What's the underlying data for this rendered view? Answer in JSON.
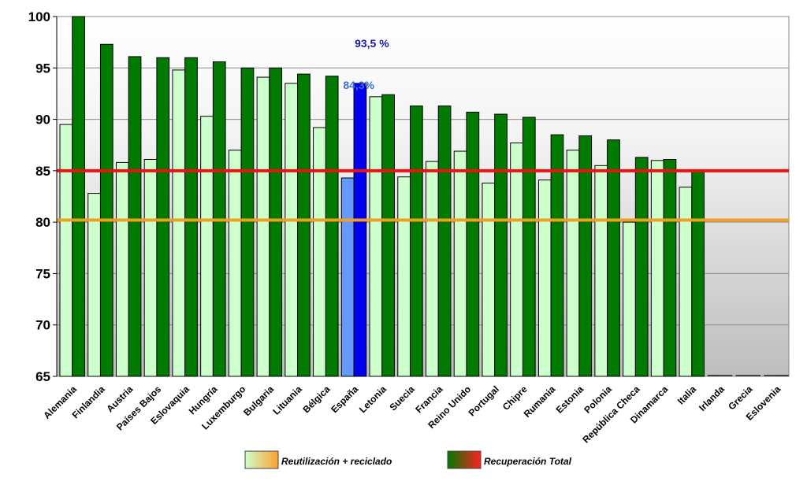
{
  "chart_data": {
    "type": "bar",
    "ylim": [
      65,
      100
    ],
    "yticks": [
      65,
      70,
      75,
      80,
      85,
      90,
      95,
      100
    ],
    "grid": true,
    "categories": [
      "Alemania",
      "Finlandia",
      "Austria",
      "Países Bajos",
      "Eslovaquia",
      "Hungría",
      "Luxemburgo",
      "Bulgaria",
      "Lituania",
      "Bélgica",
      "España",
      "Letonia",
      "Suecia",
      "Francia",
      "Reino Unido",
      "Portugal",
      "Chipre",
      "Rumania",
      "Estonia",
      "Polonia",
      "República Checa",
      "Dinamarca",
      "Italia",
      "Irlanda",
      "Grecia",
      "Eslovenia"
    ],
    "series": [
      {
        "name": "Reutilización + reciclado",
        "values": [
          89.5,
          82.8,
          85.8,
          86.1,
          94.8,
          90.3,
          87.0,
          94.1,
          93.5,
          89.2,
          84.3,
          92.2,
          84.4,
          85.9,
          86.9,
          83.8,
          87.7,
          84.1,
          87.0,
          85.5,
          80.0,
          86.0,
          83.4,
          null,
          null,
          null
        ],
        "color": "#ccffcc",
        "highlight_color": "#6699ff"
      },
      {
        "name": "Recuperación Total",
        "values": [
          100.0,
          97.3,
          96.1,
          96.0,
          96.0,
          95.6,
          95.0,
          95.0,
          94.4,
          94.2,
          93.5,
          92.4,
          91.3,
          91.3,
          90.7,
          90.5,
          90.2,
          88.5,
          88.4,
          88.0,
          86.3,
          86.1,
          85.0,
          null,
          null,
          null
        ],
        "color": "#007a00",
        "highlight_color": "#0000ee"
      }
    ],
    "highlight_category": "España",
    "reference_lines": [
      {
        "value": 85,
        "color": "#ee1111"
      },
      {
        "value": 80.2,
        "color": "#f0a020"
      }
    ],
    "annotations": [
      {
        "text": "93,5 %",
        "category": "España",
        "series": "Recuperación Total",
        "color": "#1a1aa6"
      },
      {
        "text": "84,3%",
        "category": "España",
        "series": "Reutilización + reciclado",
        "color": "#3a6fd8"
      }
    ],
    "legend_position": "bottom-center"
  }
}
